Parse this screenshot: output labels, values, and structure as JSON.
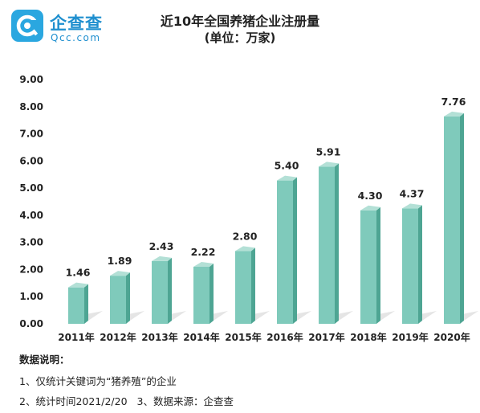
{
  "logo": {
    "name": "企查查",
    "sub": "Qcc.com"
  },
  "notes": {
    "heading": "数据说明：",
    "line1": "1、仅统计关键词为“猪养殖”的企业",
    "line2a": "2、统计时间2021/2/20",
    "line2b": "3、数据来源：企查查"
  },
  "colors": {
    "bar_front": "#7fcabb",
    "bar_side": "#4ea593",
    "bar_top": "#b3e0d6",
    "shadow": "#e2e2e2"
  },
  "chart_data": {
    "type": "bar",
    "title": "近10年全国养猪企业注册量",
    "subtitle": "(单位：万家)",
    "categories": [
      "2011年",
      "2012年",
      "2013年",
      "2014年",
      "2015年",
      "2016年",
      "2017年",
      "2018年",
      "2019年",
      "2020年"
    ],
    "values": [
      1.46,
      1.89,
      2.43,
      2.22,
      2.8,
      5.4,
      5.91,
      4.3,
      4.37,
      7.76
    ],
    "value_labels": [
      "1.46",
      "1.89",
      "2.43",
      "2.22",
      "2.80",
      "5.40",
      "5.91",
      "4.30",
      "4.37",
      "7.76"
    ],
    "yticks": [
      "0.00",
      "1.00",
      "2.00",
      "3.00",
      "4.00",
      "5.00",
      "6.00",
      "7.00",
      "8.00",
      "9.00"
    ],
    "ylim": [
      0,
      9
    ],
    "xlabel": "",
    "ylabel": "",
    "grid": false,
    "legend": "none"
  }
}
